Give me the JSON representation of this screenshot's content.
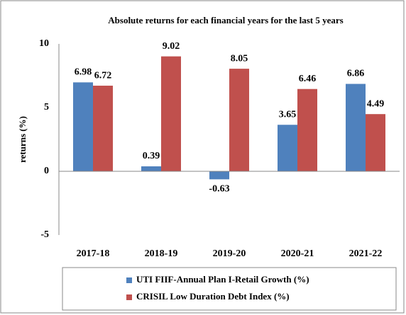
{
  "chart_data": {
    "type": "bar",
    "title": "Absolute returns for each financial years for the last 5 years",
    "y_label": "returns (%)",
    "categories": [
      "2017-18",
      "2018-19",
      "2019-20",
      "2020-21",
      "2021-22"
    ],
    "series": [
      {
        "name": "UTI FIIF-Annual Plan I-Retail Growth (%)",
        "color": "#4f81bd",
        "values": [
          6.98,
          0.39,
          -0.63,
          3.65,
          6.86
        ]
      },
      {
        "name": "CRISIL Low Duration Debt Index (%)",
        "color": "#c0504d",
        "values": [
          6.72,
          9.02,
          8.05,
          6.46,
          4.49
        ]
      }
    ],
    "ylim": [
      -5,
      10
    ],
    "yticks": [
      -5,
      0,
      5,
      10
    ],
    "grid": false
  }
}
